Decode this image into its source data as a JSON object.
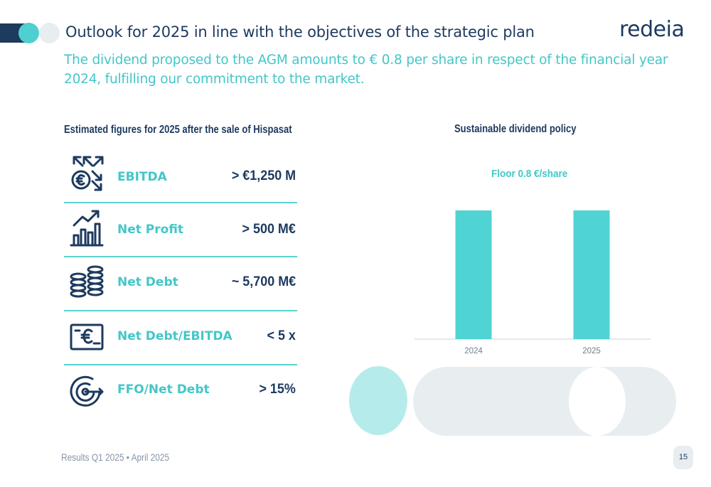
{
  "header": {
    "title": "Outlook for 2025 in line with the objectives of the strategic plan",
    "logo_text": "redeia",
    "subtitle": "The dividend proposed to the AGM amounts to € 0.8 per share in respect of the financial year 2024, fulfilling our commitment to the market."
  },
  "left": {
    "heading": "Estimated figures for 2025 after the sale of Hispasat",
    "metrics": [
      {
        "label": "EBITDA",
        "value": "> €1,250 M",
        "icon": "money-arrows-icon"
      },
      {
        "label": "Net Profit",
        "value": "> 500 M€",
        "icon": "growth-chart-icon"
      },
      {
        "label": "Net Debt",
        "value": "~ 5,700 M€",
        "icon": "coin-stacks-icon"
      },
      {
        "label": "Net Debt/EBITDA",
        "value": "< 5 x",
        "icon": "euro-terminal-icon"
      },
      {
        "label": "FFO/Net Debt",
        "value": "> 15%",
        "icon": "target-arrow-icon"
      }
    ]
  },
  "right": {
    "heading": "Sustainable dividend policy"
  },
  "chart_data": {
    "type": "bar",
    "title": "",
    "annotation": "Floor 0.8 €/share",
    "categories": [
      "2024",
      "2025"
    ],
    "values": [
      0.8,
      0.8
    ],
    "ylim": [
      0,
      0.8
    ],
    "grid": false,
    "bar_color": "#4fd3d3"
  },
  "footer": {
    "text": "Results Q1 2025 • April 2025",
    "page": "15"
  },
  "colors": {
    "navy": "#1d3a5f",
    "teal": "#44c6c8",
    "light_grey": "#e8edf0"
  }
}
